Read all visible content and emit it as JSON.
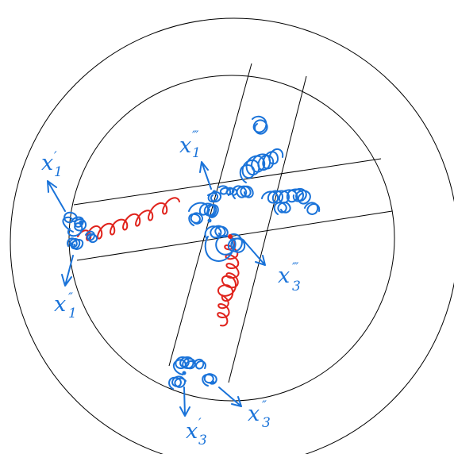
{
  "colors": {
    "line": "#000000",
    "blue": "#1a73d9",
    "red": "#e0231c",
    "background": "#ffffff"
  },
  "labels": [
    {
      "id": "x1p",
      "main": "x",
      "prime": "′",
      "sub": "1"
    },
    {
      "id": "x1pp",
      "main": "x",
      "prime": "″",
      "sub": "1"
    },
    {
      "id": "x1ppp",
      "main": "x",
      "prime": "‴",
      "sub": "1"
    },
    {
      "id": "x3p",
      "main": "x",
      "prime": "′",
      "sub": "3"
    },
    {
      "id": "x3pp",
      "main": "x",
      "prime": "″",
      "sub": "3"
    },
    {
      "id": "x3ppp",
      "main": "x",
      "prime": "‴",
      "sub": "3"
    }
  ]
}
